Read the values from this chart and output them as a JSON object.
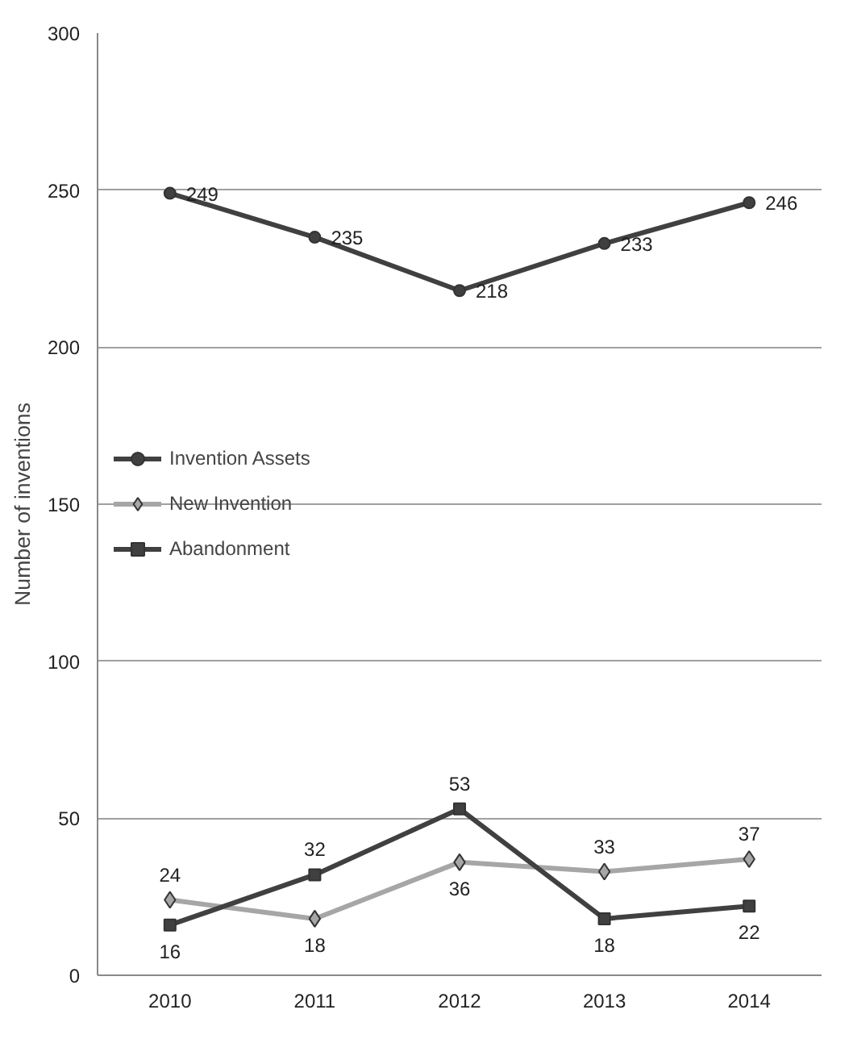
{
  "chart_data": {
    "type": "line",
    "ylabel": "Number of inventions",
    "categories": [
      "2010",
      "2011",
      "2012",
      "2013",
      "2014"
    ],
    "series": [
      {
        "name": "Invention Assets",
        "color": "#404040",
        "marker": "circle",
        "values": [
          249,
          235,
          218,
          233,
          246
        ]
      },
      {
        "name": "New Invention",
        "color": "#a6a6a6",
        "marker": "diamond",
        "values": [
          24,
          18,
          36,
          33,
          37
        ]
      },
      {
        "name": "Abandonment",
        "color": "#404040",
        "marker": "square",
        "values": [
          16,
          32,
          53,
          18,
          22
        ]
      }
    ],
    "ylim": [
      0,
      300
    ],
    "yticks": [
      0,
      50,
      100,
      150,
      200,
      250,
      300
    ],
    "grid": "y",
    "legend": "left",
    "data_labels": true,
    "line_style": "solid"
  }
}
